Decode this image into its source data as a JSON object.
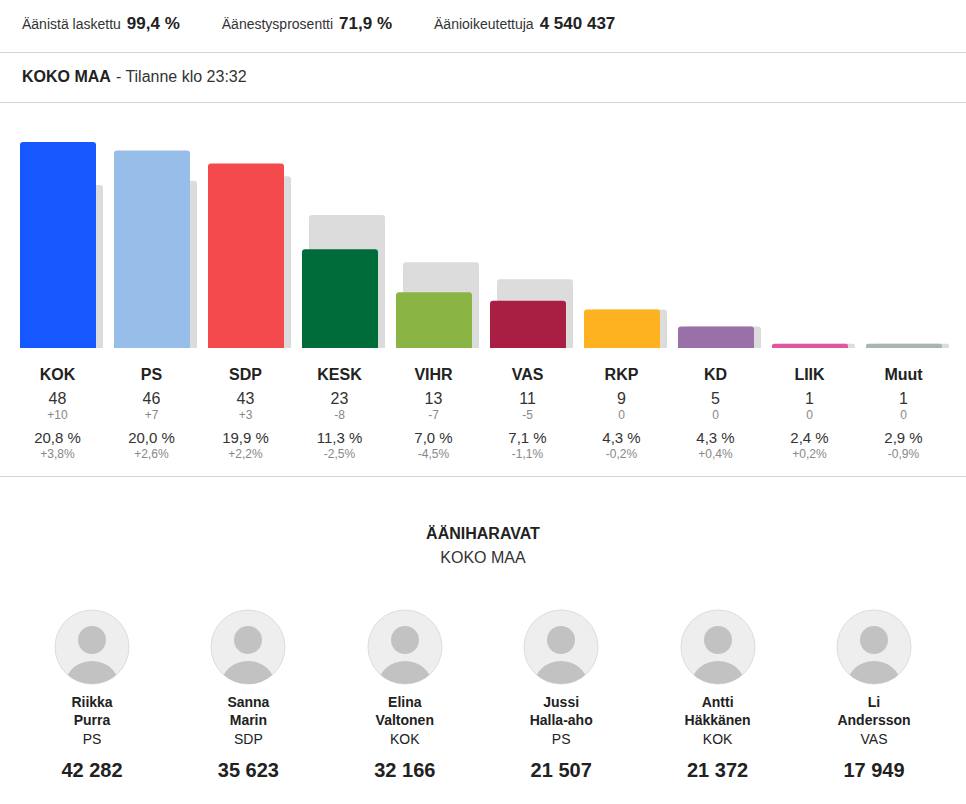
{
  "header": {
    "stats": [
      {
        "label": "Äänistä laskettu",
        "value": "99,4 %"
      },
      {
        "label": "Äänestysprosentti",
        "value": "71,9 %"
      },
      {
        "label": "Äänioikeutettuja",
        "value": "4 540 437"
      }
    ],
    "region": "KOKO MAA",
    "status": "- Tilanne klo 23:32"
  },
  "chart_data": {
    "type": "bar",
    "categories": [
      "KOK",
      "PS",
      "SDP",
      "KESK",
      "VIHR",
      "VAS",
      "RKP",
      "KD",
      "LIIK",
      "Muut"
    ],
    "series": [
      {
        "values": [
          38,
          39,
          40,
          31,
          20,
          16,
          9,
          5,
          1,
          1
        ],
        "color": "#dcdcdc"
      },
      {
        "values": [
          48,
          46,
          43,
          23,
          13,
          11,
          9,
          5,
          1,
          1
        ],
        "colors": [
          "#1657ff",
          "#96bee8",
          "#f54a4d",
          "#006c3a",
          "#8ab545",
          "#a81f43",
          "#ffb21f",
          "#9a70a8",
          "#e0579e",
          "#a9b5b5"
        ]
      }
    ],
    "seat_changes": [
      "+10",
      "+7",
      "+3",
      "-8",
      "-7",
      "-5",
      "0",
      "0",
      "0",
      "0"
    ],
    "vote_shares": [
      "20,8 %",
      "20,0 %",
      "19,9 %",
      "11,3 %",
      "7,0 %",
      "7,1 %",
      "4,3 %",
      "4,3 %",
      "2,4 %",
      "2,9 %"
    ],
    "vote_share_changes": [
      "+3,8%",
      "+2,6%",
      "+2,2%",
      "-2,5%",
      "-4,5%",
      "-1,1%",
      "-0,2%",
      "+0,4%",
      "+0,2%",
      "-0,9%"
    ],
    "ylim": [
      0,
      48
    ],
    "data_labels": true,
    "tick_labels": "x",
    "grid": false
  },
  "vote_getters": {
    "title": "ÄÄNIHARAVAT",
    "subtitle": "KOKO MAA",
    "candidates": [
      {
        "first": "Riikka",
        "last": "Purra",
        "party": "PS",
        "votes": "42 282"
      },
      {
        "first": "Sanna",
        "last": "Marin",
        "party": "SDP",
        "votes": "35 623"
      },
      {
        "first": "Elina",
        "last": "Valtonen",
        "party": "KOK",
        "votes": "32 166"
      },
      {
        "first": "Jussi",
        "last": "Halla-aho",
        "party": "PS",
        "votes": "21 507"
      },
      {
        "first": "Antti",
        "last": "Häkkänen",
        "party": "KOK",
        "votes": "21 372"
      },
      {
        "first": "Li",
        "last": "Andersson",
        "party": "VAS",
        "votes": "17 949"
      }
    ]
  }
}
